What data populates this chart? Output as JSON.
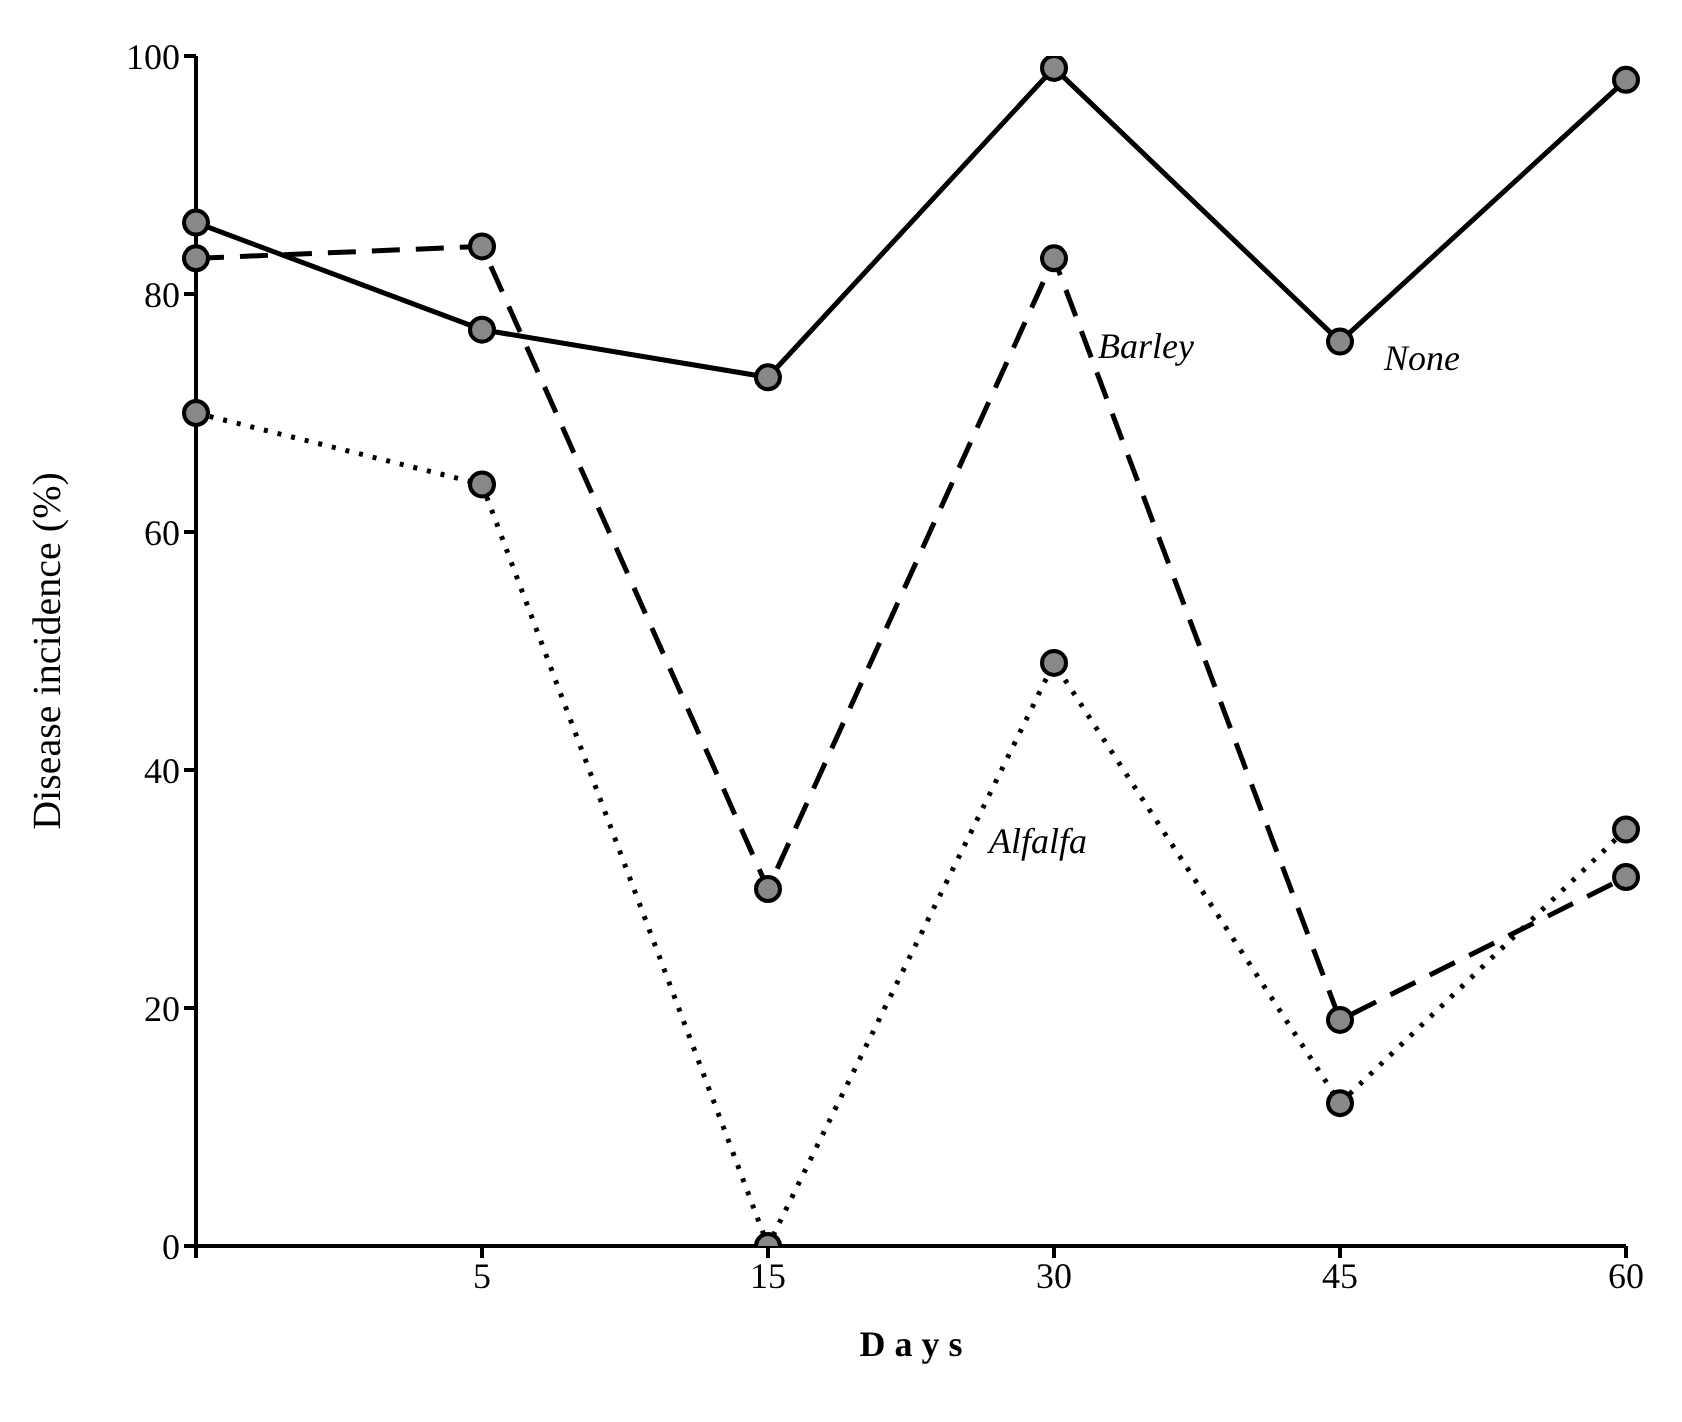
{
  "chart_data": {
    "type": "line",
    "xlabel": "D a y s",
    "ylabel": "Disease incidence (%)",
    "categories": [
      null,
      "5",
      "15",
      "30",
      "45",
      "60"
    ],
    "series": [
      {
        "name": "None",
        "color": "#000000",
        "line_style": "solid",
        "values": [
          86,
          77,
          73,
          99,
          76,
          98
        ]
      },
      {
        "name": "Barley",
        "color": "#000000",
        "line_style": "dashed",
        "values": [
          83,
          84,
          30,
          83,
          19,
          31
        ]
      },
      {
        "name": "Alfalfa",
        "color": "#000000",
        "line_style": "dotted",
        "values": [
          70,
          64,
          0,
          49,
          12,
          35
        ]
      }
    ],
    "ylim": [
      0,
      100
    ],
    "yticks": [
      0,
      20,
      40,
      60,
      80,
      100
    ],
    "grid": false,
    "legend": false,
    "marker": "circle"
  }
}
